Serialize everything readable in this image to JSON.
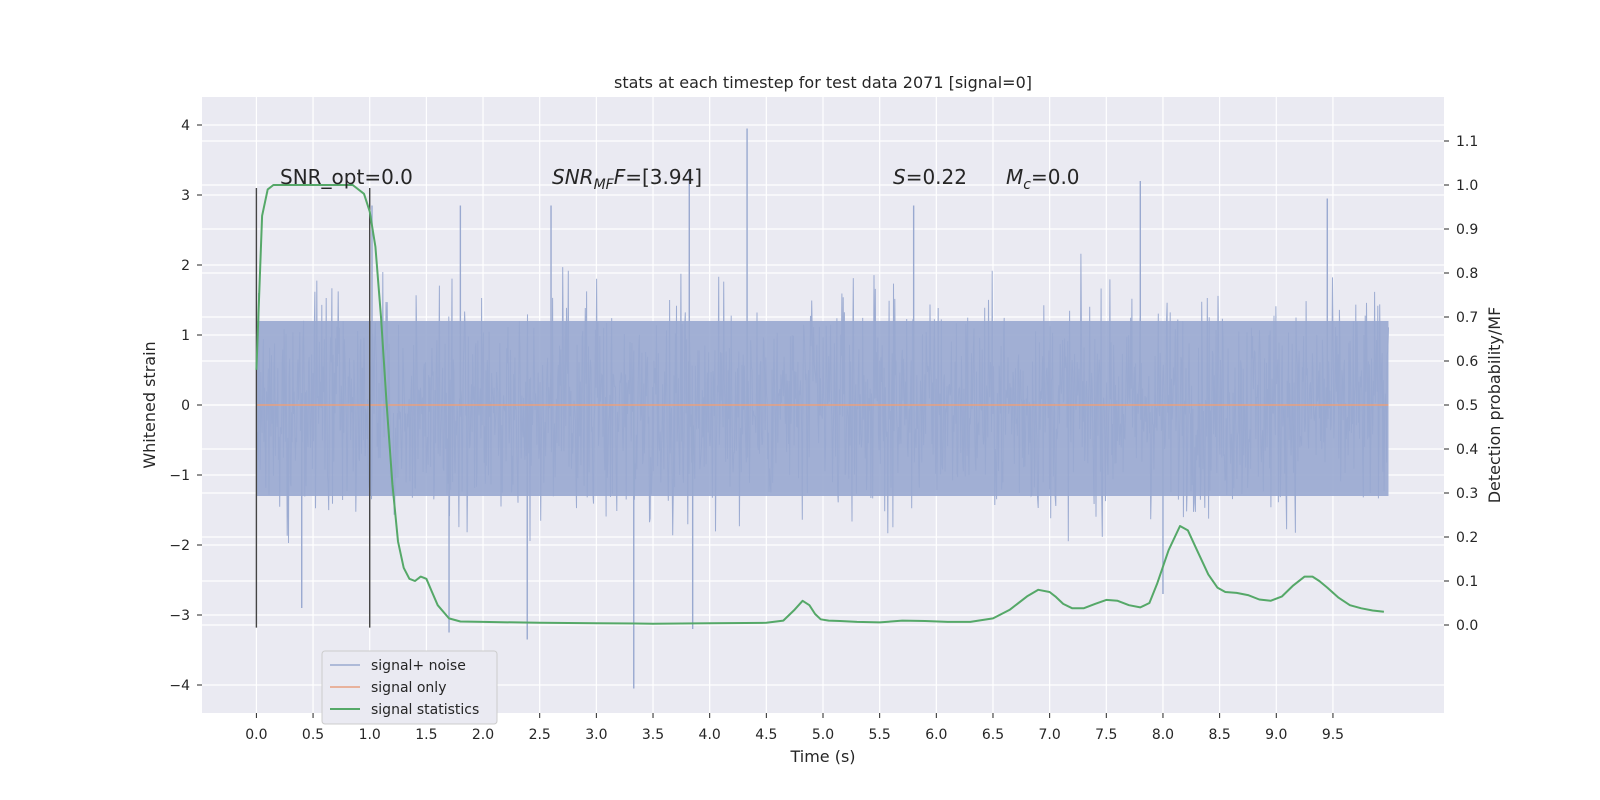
{
  "chart_data": {
    "type": "line",
    "title": "stats at each timestep for test data 2071 [signal=0]",
    "xlabel": "Time (s)",
    "ylabel_left": "Whitened strain",
    "ylabel_right": "Detection probability/MF",
    "xlim": [
      -0.48,
      10.48
    ],
    "ylim_left": [
      -4.4,
      4.4
    ],
    "ylim_right": [
      -0.2,
      1.2
    ],
    "x_ticks": [
      "0.0",
      "0.5",
      "1.0",
      "1.5",
      "2.0",
      "2.5",
      "3.0",
      "3.5",
      "4.0",
      "4.5",
      "5.0",
      "5.5",
      "6.0",
      "6.5",
      "7.0",
      "7.5",
      "8.0",
      "8.5",
      "9.0",
      "9.5"
    ],
    "y_ticks_left": [
      "−4",
      "−3",
      "−2",
      "−1",
      "0",
      "1",
      "2",
      "3",
      "4"
    ],
    "y_ticks_right": [
      "0.0",
      "0.1",
      "0.2",
      "0.3",
      "0.4",
      "0.5",
      "0.6",
      "0.7",
      "0.8",
      "0.9",
      "1.0",
      "1.1"
    ],
    "grid": true,
    "legend_position": "lower-left",
    "annotations": {
      "snr_opt": "SNR_opt=0.0",
      "snr_mf_main": "SNR",
      "snr_mf_sub": "MF",
      "snr_mf_value": "=[3.94]",
      "s_label": "S",
      "s_value": "=0.22",
      "mc_main": "M",
      "mc_sub": "c",
      "mc_value": "=0.0"
    },
    "vertical_markers": [
      0.0,
      1.0
    ],
    "series": [
      {
        "name": "signal+ noise",
        "color": "#99a9d0",
        "style": "noise band",
        "x_range": [
          0.0,
          9.99
        ],
        "typical_range": [
          -1.3,
          1.2
        ],
        "envelope_range": [
          -2.2,
          2.3
        ],
        "spikes": [
          [
            0.02,
            1.6
          ],
          [
            0.4,
            -2.9
          ],
          [
            1.02,
            2.85
          ],
          [
            1.7,
            -3.25
          ],
          [
            1.8,
            2.85
          ],
          [
            2.39,
            -3.35
          ],
          [
            2.6,
            2.85
          ],
          [
            3.33,
            -4.05
          ],
          [
            3.82,
            3.35
          ],
          [
            3.85,
            -3.2
          ],
          [
            4.33,
            3.95
          ],
          [
            5.8,
            2.85
          ],
          [
            7.8,
            3.2
          ],
          [
            8.0,
            -2.7
          ],
          [
            9.45,
            2.95
          ]
        ]
      },
      {
        "name": "signal only",
        "color": "#e8a07f",
        "values_constant": 0.0
      },
      {
        "name": "signal statistics",
        "color": "#55a868",
        "axis": "right",
        "x": [
          0.0,
          0.05,
          0.1,
          0.15,
          0.2,
          0.3,
          0.5,
          0.7,
          0.85,
          0.95,
          1.0,
          1.05,
          1.1,
          1.15,
          1.2,
          1.25,
          1.3,
          1.35,
          1.4,
          1.45,
          1.5,
          1.55,
          1.6,
          1.7,
          1.8,
          2.0,
          2.5,
          3.0,
          3.5,
          4.0,
          4.5,
          4.65,
          4.75,
          4.82,
          4.88,
          4.93,
          4.98,
          5.05,
          5.15,
          5.3,
          5.5,
          5.7,
          5.9,
          6.1,
          6.3,
          6.5,
          6.65,
          6.8,
          6.9,
          7.0,
          7.05,
          7.12,
          7.2,
          7.3,
          7.4,
          7.5,
          7.6,
          7.7,
          7.8,
          7.88,
          7.95,
          8.05,
          8.15,
          8.22,
          8.3,
          8.4,
          8.48,
          8.55,
          8.65,
          8.75,
          8.85,
          8.95,
          9.05,
          9.15,
          9.25,
          9.32,
          9.38,
          9.45,
          9.55,
          9.65,
          9.75,
          9.85,
          9.95
        ],
        "values": [
          0.58,
          0.93,
          0.99,
          1.0,
          1.0,
          1.0,
          1.0,
          1.0,
          1.0,
          0.98,
          0.94,
          0.86,
          0.7,
          0.5,
          0.32,
          0.19,
          0.13,
          0.105,
          0.1,
          0.11,
          0.105,
          0.075,
          0.045,
          0.015,
          0.008,
          0.007,
          0.005,
          0.004,
          0.003,
          0.004,
          0.005,
          0.01,
          0.035,
          0.055,
          0.045,
          0.025,
          0.013,
          0.01,
          0.009,
          0.007,
          0.006,
          0.01,
          0.009,
          0.007,
          0.007,
          0.015,
          0.035,
          0.065,
          0.08,
          0.075,
          0.065,
          0.048,
          0.038,
          0.038,
          0.048,
          0.057,
          0.055,
          0.045,
          0.04,
          0.05,
          0.095,
          0.17,
          0.225,
          0.215,
          0.17,
          0.115,
          0.085,
          0.075,
          0.073,
          0.068,
          0.058,
          0.055,
          0.065,
          0.09,
          0.11,
          0.11,
          0.1,
          0.085,
          0.062,
          0.045,
          0.038,
          0.033,
          0.03
        ]
      }
    ]
  }
}
